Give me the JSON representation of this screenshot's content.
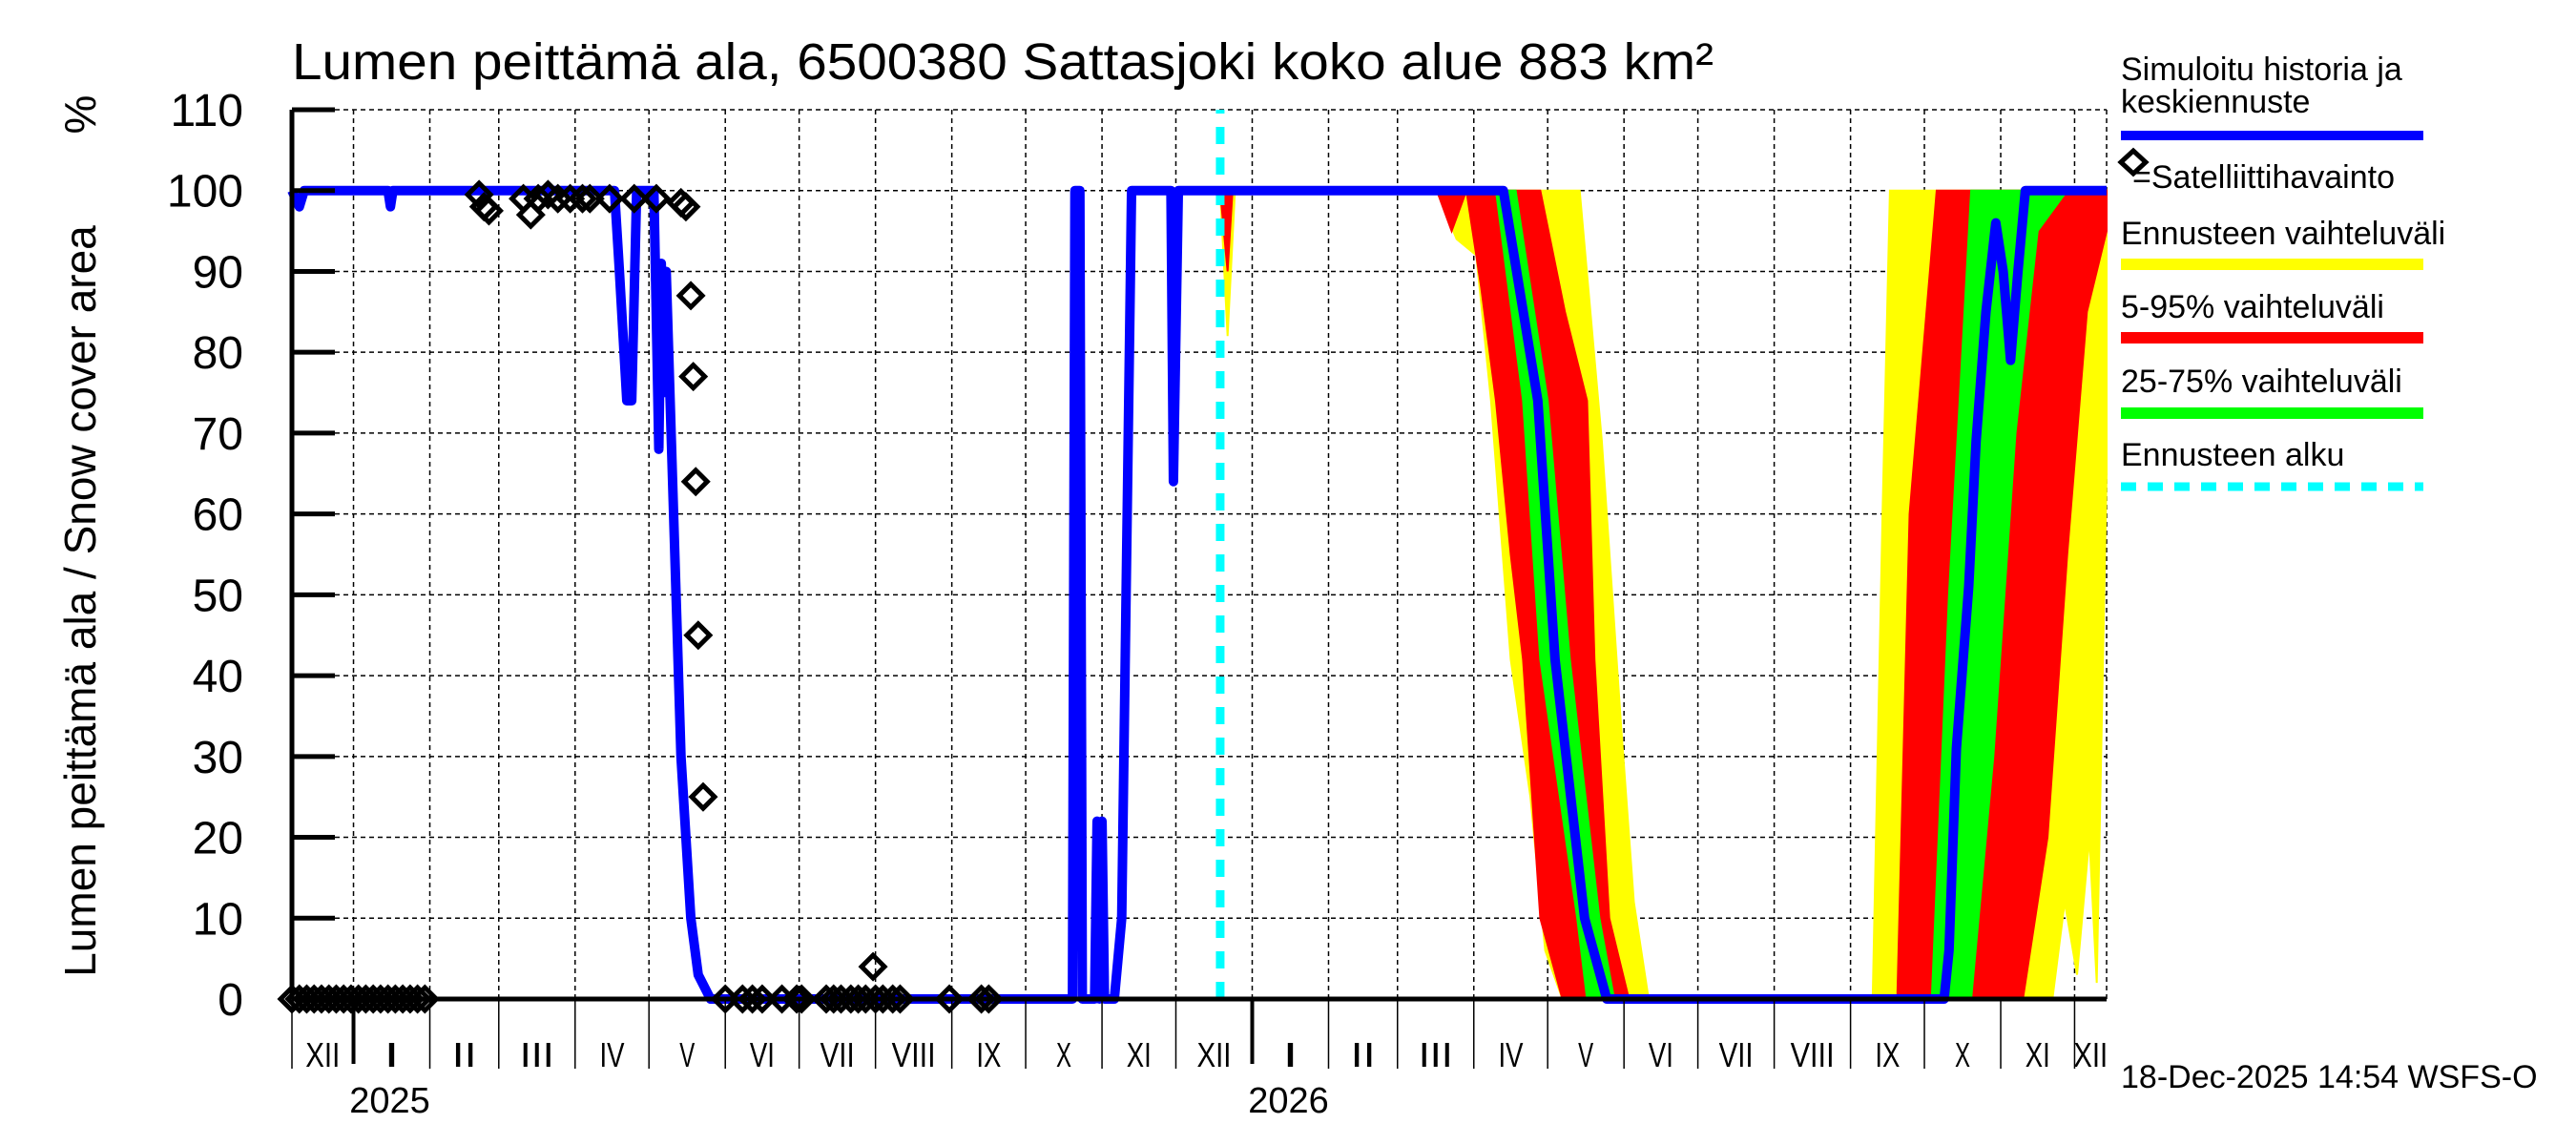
{
  "chart_data": {
    "type": "area",
    "title": "Lumen peittämä ala, 6500380 Sattasjoki koko alue 883 km²",
    "ylabel": "Lumen peittämä ala / Snow cover area",
    "yunit": "%",
    "x_unit": "days since 2025-01-01",
    "xlim": [
      -25,
      712
    ],
    "ylim": [
      0,
      110
    ],
    "yticks": [
      0,
      10,
      20,
      30,
      40,
      50,
      60,
      70,
      80,
      90,
      100,
      110
    ],
    "grid": true,
    "month_labels": [
      "XII",
      "I",
      "II",
      "III",
      "IV",
      "V",
      "VI",
      "VII",
      "VIII",
      "IX",
      "X",
      "XI",
      "XII",
      "I",
      "II",
      "III",
      "IV",
      "V",
      "VI",
      "VII",
      "VIII",
      "IX",
      "X",
      "XI",
      "XII"
    ],
    "year_labels": [
      {
        "label": "2025",
        "day": 0
      },
      {
        "label": "2026",
        "day": 365
      }
    ],
    "forecast_start_day": 352,
    "bands": [
      {
        "name": "Ennusteen vaihteluväli",
        "color": "#ffff00",
        "upper": [
          [
            352,
            100
          ],
          [
            498,
            100
          ],
          [
            507,
            69
          ],
          [
            515,
            33
          ],
          [
            520,
            12
          ],
          [
            526,
            0
          ]
        ],
        "lower": [
          [
            352,
            100
          ],
          [
            355,
            82
          ],
          [
            358,
            100
          ],
          [
            440,
            100
          ],
          [
            448,
            94
          ],
          [
            456,
            92
          ],
          [
            462,
            74
          ],
          [
            470,
            42
          ],
          [
            478,
            25
          ],
          [
            484,
            6
          ],
          [
            491,
            0
          ],
          [
            526,
            0
          ]
        ]
      },
      {
        "name": "Ennusteen vaihteluväli",
        "color": "#ffff00",
        "upper": [
          [
            612,
            0
          ],
          [
            617,
            0
          ],
          [
            621,
            60
          ],
          [
            624,
            100
          ],
          [
            712,
            100
          ]
        ],
        "lower": [
          [
            612,
            0
          ],
          [
            690,
            0
          ],
          [
            695,
            12
          ],
          [
            700,
            3
          ],
          [
            705,
            20
          ],
          [
            708,
            2
          ],
          [
            712,
            65
          ]
        ]
      },
      {
        "name": "5-95% vaihteluväli",
        "color": "#ff0000",
        "upper": [
          [
            352,
            100
          ],
          [
            482,
            100
          ],
          [
            492,
            85
          ],
          [
            501,
            74
          ],
          [
            504,
            42
          ],
          [
            510,
            10
          ],
          [
            518,
            0
          ]
        ],
        "lower": [
          [
            352,
            100
          ],
          [
            355,
            90
          ],
          [
            357,
            100
          ],
          [
            440,
            100
          ],
          [
            446,
            95
          ],
          [
            452,
            100
          ],
          [
            458,
            88
          ],
          [
            464,
            74
          ],
          [
            470,
            55
          ],
          [
            475,
            42
          ],
          [
            482,
            10
          ],
          [
            491,
            0
          ],
          [
            518,
            0
          ]
        ]
      },
      {
        "name": "5-95% vaihteluväli",
        "color": "#ff0000",
        "upper": [
          [
            627,
            0
          ],
          [
            632,
            60
          ],
          [
            643,
            100
          ],
          [
            712,
            100
          ]
        ],
        "lower": [
          [
            627,
            0
          ],
          [
            678,
            0
          ],
          [
            688,
            20
          ],
          [
            696,
            55
          ],
          [
            704,
            85
          ],
          [
            712,
            95
          ]
        ]
      },
      {
        "name": "25-75% vaihteluväli",
        "color": "#00ff00",
        "upper": [
          [
            352,
            100
          ],
          [
            472,
            100
          ],
          [
            485,
            74
          ],
          [
            494,
            42
          ],
          [
            506,
            10
          ],
          [
            512,
            0
          ]
        ],
        "lower": [
          [
            352,
            100
          ],
          [
            464,
            100
          ],
          [
            475,
            74
          ],
          [
            482,
            42
          ],
          [
            497,
            10
          ],
          [
            501,
            0
          ],
          [
            512,
            0
          ]
        ]
      },
      {
        "name": "25-75% vaihteluväli",
        "color": "#00ff00",
        "upper": [
          [
            641,
            0
          ],
          [
            648,
            50
          ],
          [
            657,
            100
          ],
          [
            712,
            100
          ]
        ],
        "lower": [
          [
            641,
            0
          ],
          [
            657,
            0
          ],
          [
            666,
            30
          ],
          [
            675,
            70
          ],
          [
            684,
            95
          ],
          [
            696,
            100
          ],
          [
            712,
            100
          ]
        ]
      }
    ],
    "series": [
      {
        "name": "Simuloitu historia ja keskiennuste",
        "color": "#0000ff",
        "points": [
          [
            -25,
            100
          ],
          [
            -22,
            98
          ],
          [
            -20,
            100
          ],
          [
            14,
            100
          ],
          [
            15,
            98
          ],
          [
            16,
            100
          ],
          [
            106,
            100
          ],
          [
            108,
            90
          ],
          [
            111,
            74
          ],
          [
            113,
            74
          ],
          [
            115,
            100
          ],
          [
            122,
            100
          ],
          [
            124,
            68
          ],
          [
            125,
            91
          ],
          [
            126,
            75
          ],
          [
            127,
            90
          ],
          [
            129,
            70
          ],
          [
            131,
            50
          ],
          [
            133,
            30
          ],
          [
            135,
            20
          ],
          [
            137,
            10
          ],
          [
            140,
            3
          ],
          [
            145,
            0
          ],
          [
            292,
            0
          ],
          [
            293,
            100
          ],
          [
            295,
            100
          ],
          [
            296,
            0
          ],
          [
            301,
            0
          ],
          [
            302,
            22
          ],
          [
            303,
            0
          ],
          [
            304,
            22
          ],
          [
            305,
            0
          ],
          [
            309,
            0
          ],
          [
            312,
            10
          ],
          [
            316,
            100
          ],
          [
            332,
            100
          ],
          [
            333,
            64
          ],
          [
            335,
            100
          ],
          [
            352,
            100
          ],
          [
            467,
            100
          ],
          [
            481,
            74
          ],
          [
            488,
            42
          ],
          [
            500,
            10
          ],
          [
            509,
            0
          ],
          [
            646,
            0
          ],
          [
            648,
            6
          ],
          [
            651,
            31
          ],
          [
            656,
            51
          ],
          [
            659,
            69
          ],
          [
            663,
            85
          ],
          [
            667,
            96
          ],
          [
            670,
            90
          ],
          [
            673,
            79
          ],
          [
            676,
            90
          ],
          [
            679,
            100
          ],
          [
            712,
            100
          ]
        ]
      }
    ],
    "observations": {
      "name": "Satelliittihavainto",
      "points": [
        [
          -25,
          0
        ],
        [
          -22,
          0
        ],
        [
          -19,
          0
        ],
        [
          -16,
          0
        ],
        [
          -13,
          0
        ],
        [
          -10,
          0
        ],
        [
          -7,
          0
        ],
        [
          -4,
          0
        ],
        [
          -1,
          0
        ],
        [
          2,
          0
        ],
        [
          5,
          0
        ],
        [
          8,
          0
        ],
        [
          11,
          0
        ],
        [
          14,
          0
        ],
        [
          17,
          0
        ],
        [
          20,
          0
        ],
        [
          23,
          0
        ],
        [
          26,
          0
        ],
        [
          29,
          0
        ],
        [
          51,
          99.5
        ],
        [
          53,
          98
        ],
        [
          55,
          97.5
        ],
        [
          69,
          99
        ],
        [
          72,
          97
        ],
        [
          75,
          99
        ],
        [
          79,
          99.5
        ],
        [
          83,
          99
        ],
        [
          88,
          99
        ],
        [
          93,
          99
        ],
        [
          96,
          99
        ],
        [
          104,
          99
        ],
        [
          114,
          99
        ],
        [
          123,
          99
        ],
        [
          133,
          98.5
        ],
        [
          135,
          98
        ],
        [
          137,
          87
        ],
        [
          138,
          77
        ],
        [
          139,
          64
        ],
        [
          140,
          45
        ],
        [
          142,
          25
        ],
        [
          151,
          0
        ],
        [
          158,
          0
        ],
        [
          162,
          0
        ],
        [
          166,
          0
        ],
        [
          174,
          0
        ],
        [
          180,
          0
        ],
        [
          182,
          0
        ],
        [
          192,
          0
        ],
        [
          195,
          0
        ],
        [
          198,
          0
        ],
        [
          202,
          0
        ],
        [
          205,
          0
        ],
        [
          208,
          0
        ],
        [
          211,
          4
        ],
        [
          212,
          0
        ],
        [
          215,
          0
        ],
        [
          219,
          0
        ],
        [
          222,
          0
        ],
        [
          242,
          0
        ],
        [
          255,
          0
        ],
        [
          258,
          0
        ]
      ]
    }
  },
  "legend": {
    "history_line1": "Simuloitu historia ja",
    "history_line2": "keskiennuste",
    "satellite": "=Satelliittihavainto",
    "range": "Ennusteen vaihteluväli",
    "p5_95": "5-95% vaihteluväli",
    "p25_75": "25-75% vaihteluväli",
    "forecast_start": "Ennusteen alku"
  },
  "colors": {
    "history": "#0000ff",
    "range": "#ffff00",
    "p5_95": "#ff0000",
    "p25_75": "#00ff00",
    "forecast_start": "#00ffff"
  },
  "footer": "18-Dec-2025 14:54 WSFS-O"
}
